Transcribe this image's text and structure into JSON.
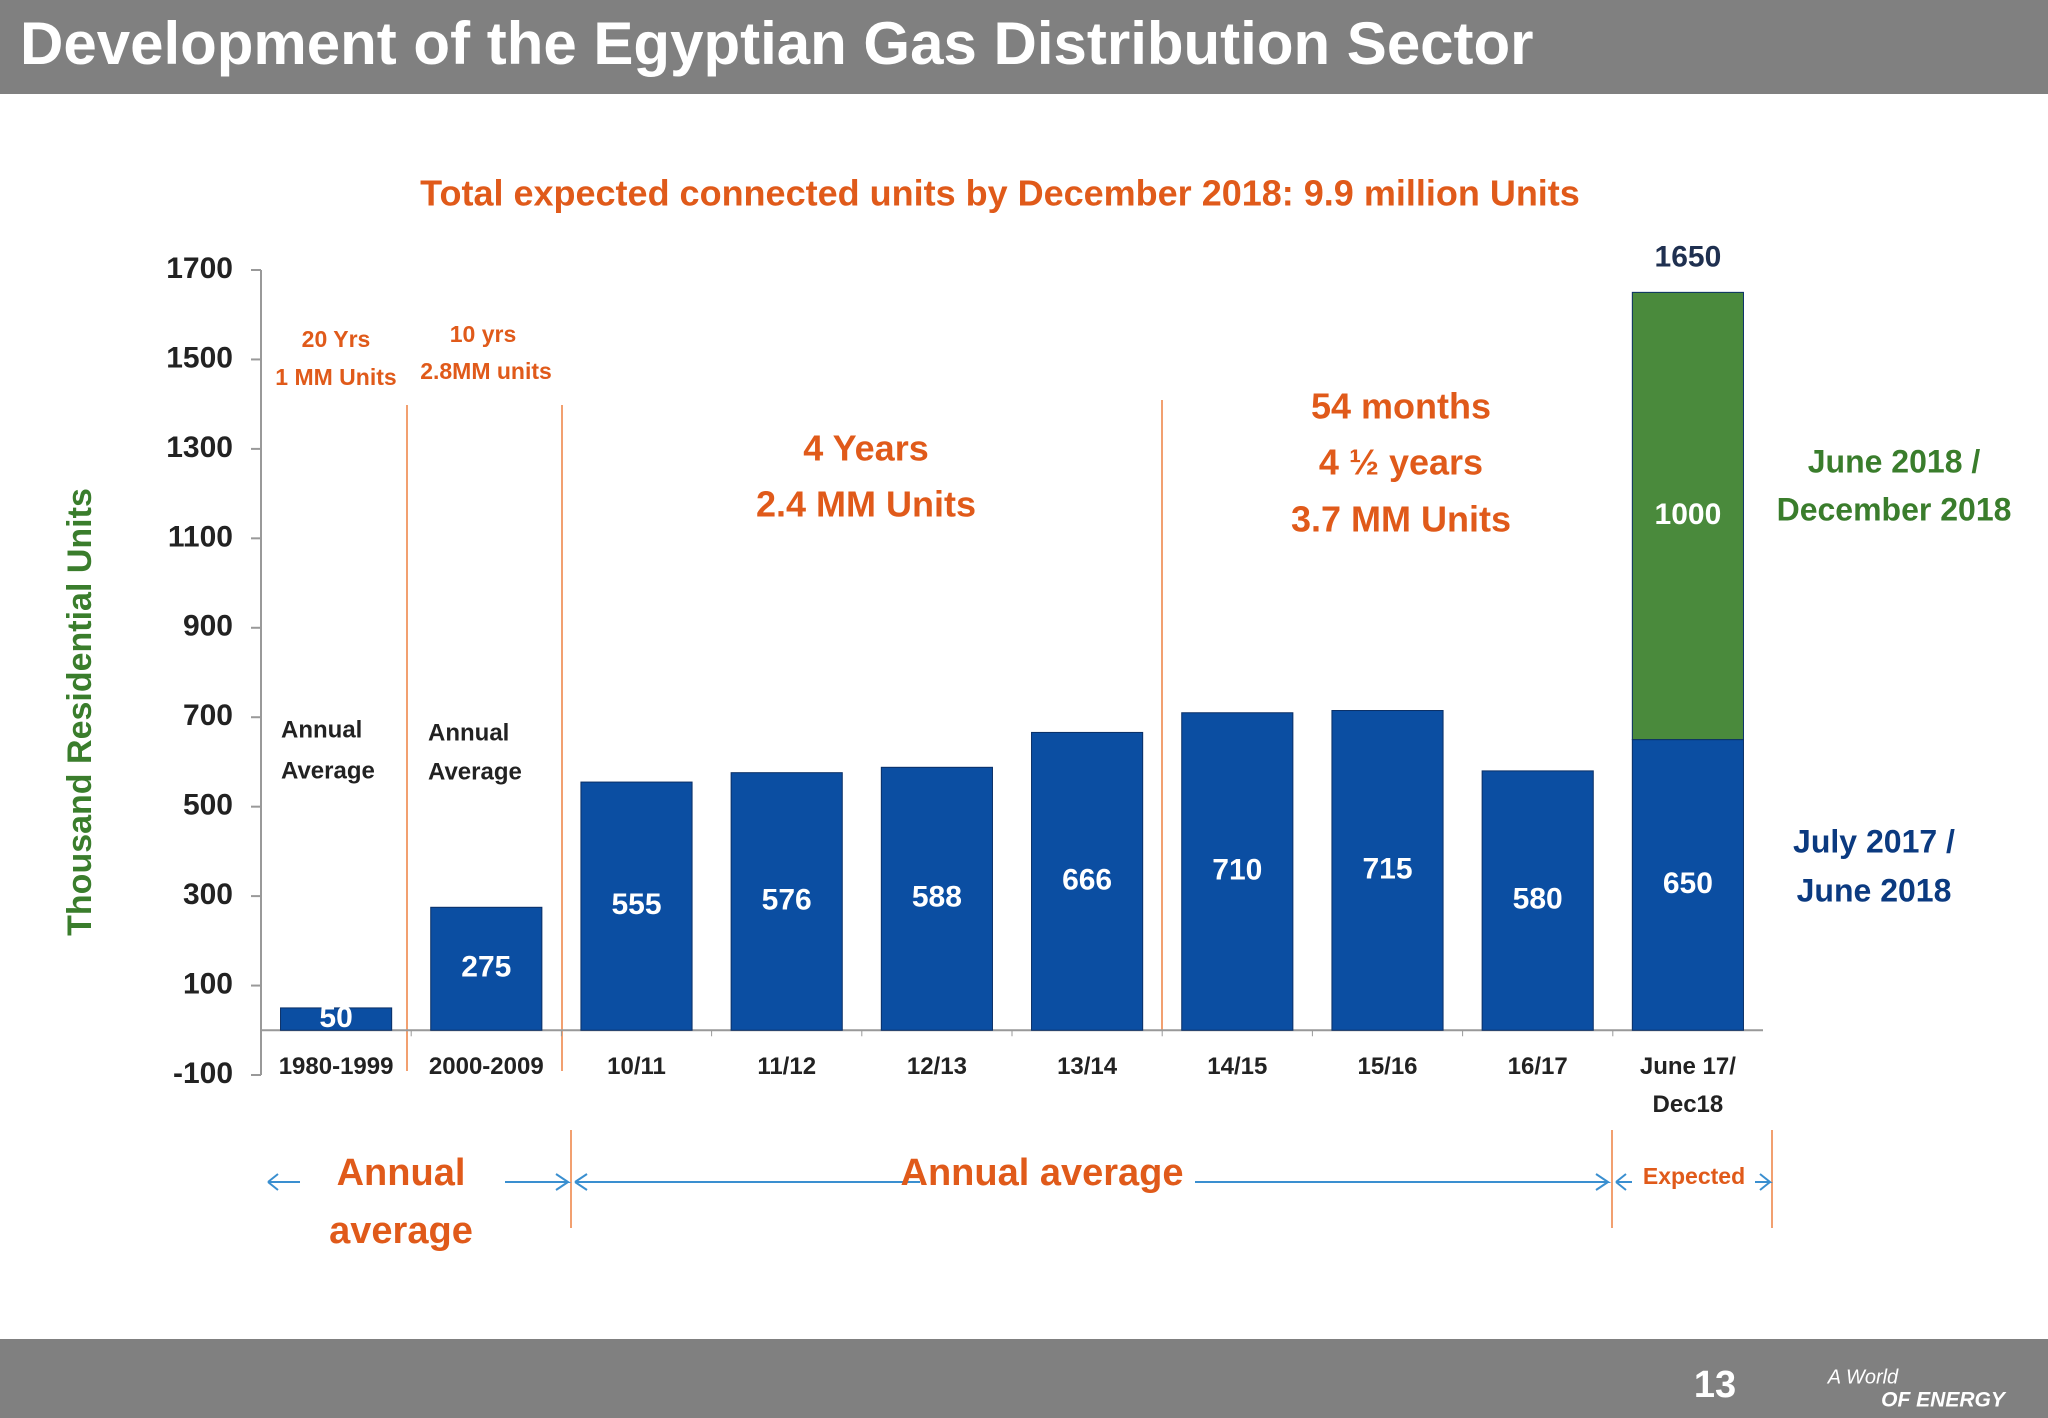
{
  "header": {
    "title": "Development of the Egyptian Gas Distribution Sector"
  },
  "chart_data": {
    "type": "bar",
    "stacked": true,
    "title": "Total expected connected units by December 2018: 9.9 million Units",
    "y_label": "Thousand Residential Units",
    "categories": [
      "1980-1999",
      "2000-2009",
      "10/11",
      "11/12",
      "12/13",
      "13/14",
      "14/15",
      "15/16",
      "16/17",
      "June 17/ Dec18"
    ],
    "series": [
      {
        "color": "#0b4ea2",
        "values": [
          50,
          275,
          555,
          576,
          588,
          666,
          710,
          715,
          580,
          650
        ]
      },
      {
        "color": "#4a8a3c",
        "values": [
          null,
          null,
          null,
          null,
          null,
          null,
          null,
          null,
          null,
          1000
        ]
      }
    ],
    "total_value": 1650,
    "ylim": [
      -100,
      1700
    ],
    "yticks": [
      -100,
      100,
      300,
      500,
      700,
      900,
      1100,
      1300,
      1500,
      1700
    ],
    "grid": false,
    "annotations": [
      "20 Yrs",
      "1 MM Units",
      "10 yrs",
      "2.8MM units",
      "Annual",
      "Average",
      "Annual",
      "Average",
      "4 Years",
      "2.4 MM Units",
      "54 months",
      "4 ½ years",
      "3.7 MM Units",
      "June 2018 /",
      "December 2018",
      "July 2017 /",
      "June 2018",
      "Annual",
      "average",
      "Annual average",
      "Expected"
    ]
  },
  "footer": {
    "page": "13",
    "brand_top": "A World",
    "brand_bottom": "OF ENERGY"
  }
}
